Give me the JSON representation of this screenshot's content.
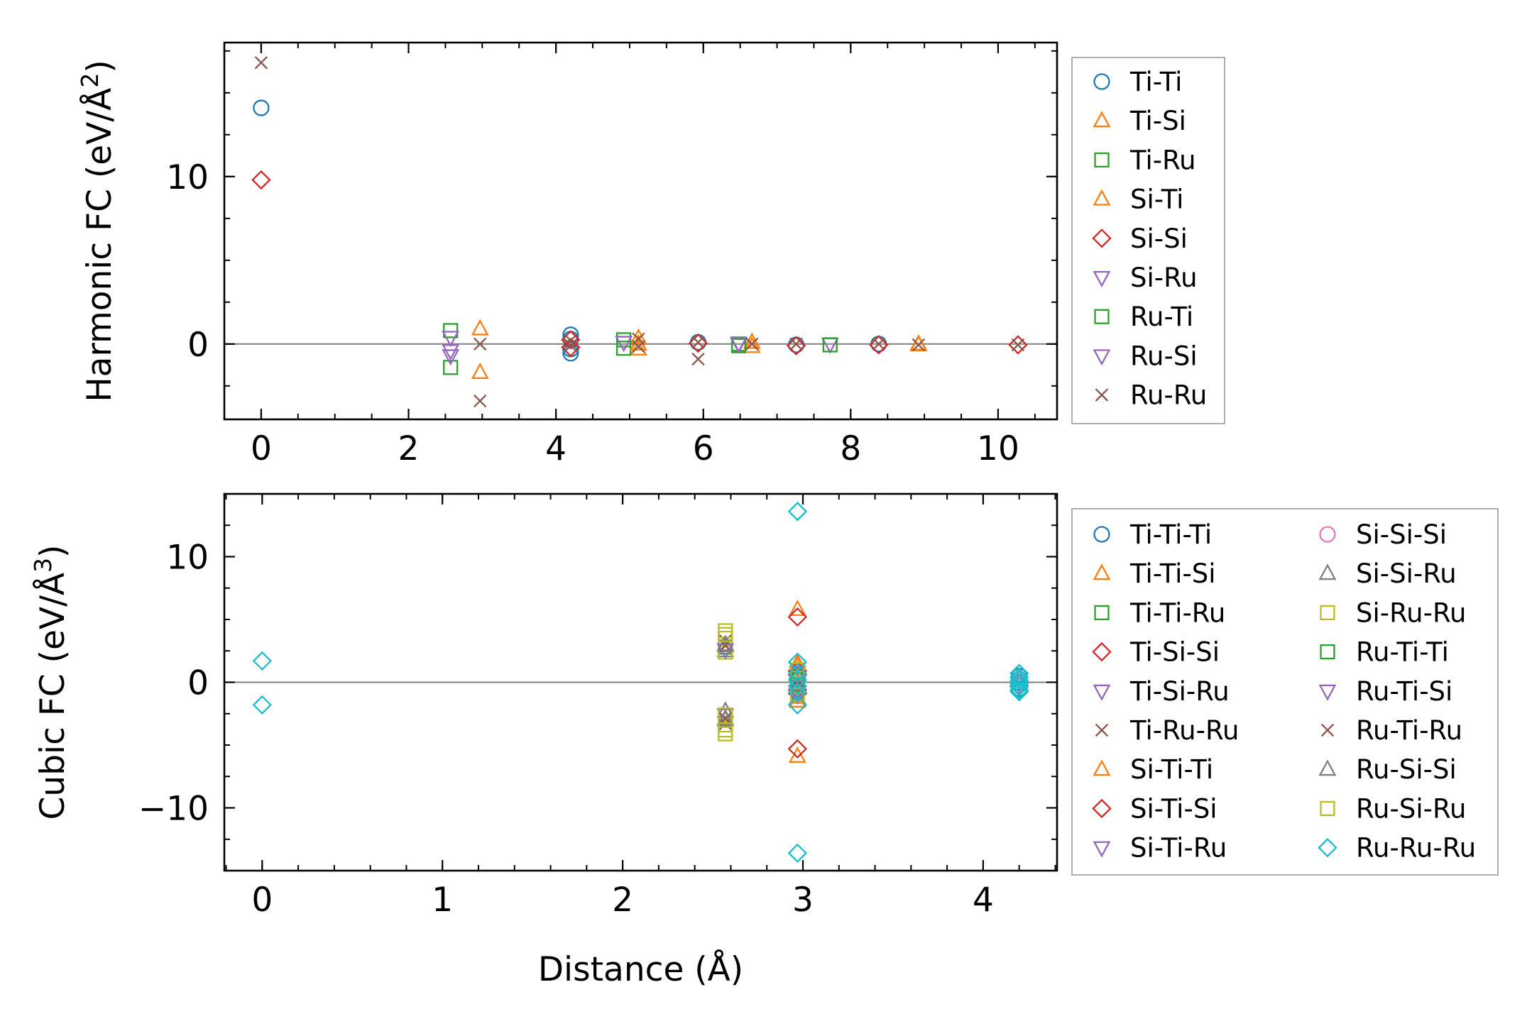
{
  "colors": {
    "blue": "#1f77b4",
    "orange": "#ff7f0e",
    "green": "#2ca02c",
    "red": "#d62728",
    "purple": "#9467bd",
    "brown": "#8c564b",
    "pink": "#e377c2",
    "gray": "#7f7f7f",
    "olive": "#bcbd22",
    "cyan": "#17becf",
    "zero_line": "#808080"
  },
  "chart_data": [
    {
      "type": "scatter",
      "title": "",
      "xlabel": "",
      "ylabel": "Harmonic FC (eV/Å",
      "ylabel_exp": "2",
      "ylabel_close": ")",
      "xlim": [
        -0.5,
        10.8
      ],
      "ylim": [
        -4.5,
        18.0
      ],
      "xticks": [
        0,
        2,
        4,
        6,
        8,
        10
      ],
      "xtick_labels": [
        "0",
        "2",
        "4",
        "6",
        "8",
        "10"
      ],
      "yticks": [
        0,
        10
      ],
      "ytick_labels": [
        "0",
        "10"
      ],
      "grid": false,
      "zero_line": true,
      "legend": {
        "location": "outside-right",
        "ncol": 1
      },
      "series": [
        {
          "name": "Ti-Ti",
          "marker": "o",
          "color": "blue",
          "x": [
            0,
            4.2,
            4.2,
            4.2,
            4.2,
            5.93,
            7.26,
            8.38
          ],
          "y": [
            14.1,
            0.55,
            0.3,
            -0.3,
            -0.55,
            0.1,
            -0.05,
            0.0
          ]
        },
        {
          "name": "Ti-Si",
          "marker": "^",
          "color": "orange",
          "x": [
            2.97,
            2.97,
            5.12,
            5.12,
            6.66,
            8.92
          ],
          "y": [
            0.9,
            -1.7,
            0.35,
            -0.3,
            0.1,
            0.0
          ]
        },
        {
          "name": "Ti-Ru",
          "marker": "s",
          "color": "green",
          "x": [
            2.57,
            2.57,
            4.92,
            4.92,
            6.48
          ],
          "y": [
            0.8,
            -1.4,
            0.25,
            -0.25,
            0.0
          ]
        },
        {
          "name": "Si-Ti",
          "marker": "^",
          "color": "orange",
          "x": [
            5.12,
            6.66,
            8.92
          ],
          "y": [
            0.0,
            -0.15,
            -0.05
          ]
        },
        {
          "name": "Si-Si",
          "marker": "D",
          "color": "red",
          "x": [
            0,
            4.2,
            4.2,
            5.93,
            7.26,
            8.38,
            10.27
          ],
          "y": [
            9.8,
            0.25,
            -0.2,
            0.05,
            -0.1,
            -0.05,
            -0.05
          ]
        },
        {
          "name": "Si-Ru",
          "marker": "v",
          "color": "purple",
          "x": [
            2.57,
            2.57,
            4.92,
            6.48,
            7.72
          ],
          "y": [
            0.4,
            -0.7,
            0.1,
            0.0,
            0.0
          ]
        },
        {
          "name": "Ru-Ti",
          "marker": "s",
          "color": "green",
          "x": [
            6.48,
            7.72
          ],
          "y": [
            -0.1,
            -0.05
          ]
        },
        {
          "name": "Ru-Si",
          "marker": "v",
          "color": "purple",
          "x": [
            2.57,
            6.48
          ],
          "y": [
            -0.4,
            0.05
          ]
        },
        {
          "name": "Ru-Ru",
          "marker": "x",
          "color": "brown",
          "x": [
            0,
            2.97,
            2.97,
            4.2,
            4.2,
            5.12,
            5.12,
            5.93,
            5.93,
            6.66,
            7.26,
            8.38,
            8.92,
            10.27
          ],
          "y": [
            16.8,
            -3.4,
            0.0,
            0.2,
            -0.1,
            0.3,
            -0.15,
            -0.9,
            0.1,
            0.0,
            0.0,
            0.0,
            -0.05,
            -0.05
          ]
        }
      ]
    },
    {
      "type": "scatter",
      "title": "",
      "xlabel": "Distance (Å)",
      "ylabel": "Cubic FC (eV/Å",
      "ylabel_exp": "3",
      "ylabel_close": ")",
      "xlim": [
        -0.21,
        4.41
      ],
      "ylim": [
        -15.0,
        15.0
      ],
      "xticks": [
        0,
        1,
        2,
        3,
        4
      ],
      "xtick_labels": [
        "0",
        "1",
        "2",
        "3",
        "4"
      ],
      "yticks": [
        -10,
        0,
        10
      ],
      "ytick_labels": [
        "−10",
        "0",
        "10"
      ],
      "grid": false,
      "zero_line": true,
      "legend": {
        "location": "outside-right",
        "ncol": 2
      },
      "series": [
        {
          "name": "Ti-Ti-Ti",
          "marker": "o",
          "color": "blue",
          "x": [
            2.97,
            2.97,
            4.2,
            4.2,
            4.2
          ],
          "y": [
            0.4,
            -0.4,
            0.5,
            0.0,
            -0.5
          ]
        },
        {
          "name": "Ti-Ti-Si",
          "marker": "^",
          "color": "orange",
          "x": [
            2.97,
            2.97,
            2.97,
            2.97
          ],
          "y": [
            5.8,
            1.3,
            -1.2,
            -5.9
          ]
        },
        {
          "name": "Ti-Ti-Ru",
          "marker": "s",
          "color": "green",
          "x": [
            2.57,
            2.97,
            2.97
          ],
          "y": [
            2.8,
            0.6,
            -0.5
          ]
        },
        {
          "name": "Ti-Si-Si",
          "marker": "D",
          "color": "red",
          "x": [
            2.97,
            2.97,
            2.97,
            2.97
          ],
          "y": [
            5.2,
            0.9,
            -0.9,
            -5.3
          ]
        },
        {
          "name": "Ti-Si-Ru",
          "marker": "v",
          "color": "purple",
          "x": [
            2.97,
            2.97,
            2.57
          ],
          "y": [
            0.3,
            -0.3,
            -2.6
          ]
        },
        {
          "name": "Ti-Ru-Ru",
          "marker": "x",
          "color": "brown",
          "x": [
            2.57,
            2.57,
            2.97
          ],
          "y": [
            3.3,
            -3.3,
            0.0
          ]
        },
        {
          "name": "Si-Ti-Ti",
          "marker": "^",
          "color": "orange",
          "x": [
            2.97,
            2.97,
            4.2
          ],
          "y": [
            1.5,
            -1.5,
            0.3
          ]
        },
        {
          "name": "Si-Ti-Si",
          "marker": "D",
          "color": "red",
          "x": [
            2.97,
            2.97,
            4.2
          ],
          "y": [
            0.6,
            -0.6,
            -0.3
          ]
        },
        {
          "name": "Si-Ti-Ru",
          "marker": "v",
          "color": "purple",
          "x": [
            2.97,
            2.97
          ],
          "y": [
            0.8,
            -0.8
          ]
        },
        {
          "name": "Si-Si-Si",
          "marker": "o",
          "color": "pink",
          "x": [
            4.2,
            4.2
          ],
          "y": [
            0.2,
            -0.2
          ]
        },
        {
          "name": "Si-Si-Ru",
          "marker": "^",
          "color": "gray",
          "x": [
            2.57,
            2.57,
            2.57,
            2.57
          ],
          "y": [
            2.5,
            2.9,
            -2.3,
            -2.9
          ]
        },
        {
          "name": "Si-Ru-Ru",
          "marker": "s",
          "color": "olive",
          "x": [
            2.57,
            2.57,
            2.57,
            2.57,
            2.57,
            2.57,
            2.97,
            2.97
          ],
          "y": [
            4.1,
            3.5,
            2.4,
            -2.6,
            -3.4,
            -4.1,
            0.3,
            -0.3
          ]
        },
        {
          "name": "Ru-Ti-Ti",
          "marker": "s",
          "color": "green",
          "x": [
            2.97,
            2.97
          ],
          "y": [
            0.2,
            -0.2
          ]
        },
        {
          "name": "Ru-Ti-Si",
          "marker": "v",
          "color": "purple",
          "x": [
            2.97,
            2.57
          ],
          "y": [
            -1.0,
            2.6
          ]
        },
        {
          "name": "Ru-Ti-Ru",
          "marker": "x",
          "color": "brown",
          "x": [
            2.57,
            2.57,
            2.97
          ],
          "y": [
            2.9,
            -2.9,
            0.1
          ]
        },
        {
          "name": "Ru-Si-Si",
          "marker": "^",
          "color": "gray",
          "x": [
            2.57,
            2.57,
            2.97
          ],
          "y": [
            3.0,
            -3.0,
            0.0
          ]
        },
        {
          "name": "Ru-Si-Ru",
          "marker": "s",
          "color": "olive",
          "x": [
            2.57,
            2.57,
            2.97,
            2.97
          ],
          "y": [
            3.8,
            -3.8,
            1.0,
            -1.0
          ]
        },
        {
          "name": "Ru-Ru-Ru",
          "marker": "D",
          "color": "cyan",
          "x": [
            0,
            0,
            2.97,
            2.97,
            2.97,
            2.97,
            2.97,
            2.97,
            2.97,
            2.97,
            4.2,
            4.2,
            4.2,
            4.2,
            4.2,
            4.2,
            4.2
          ],
          "y": [
            1.7,
            -1.8,
            13.6,
            1.6,
            0.7,
            0.2,
            -0.3,
            -0.8,
            -1.8,
            -13.6,
            0.7,
            0.4,
            0.15,
            -0.1,
            -0.35,
            -0.6,
            -0.75
          ]
        }
      ]
    }
  ]
}
